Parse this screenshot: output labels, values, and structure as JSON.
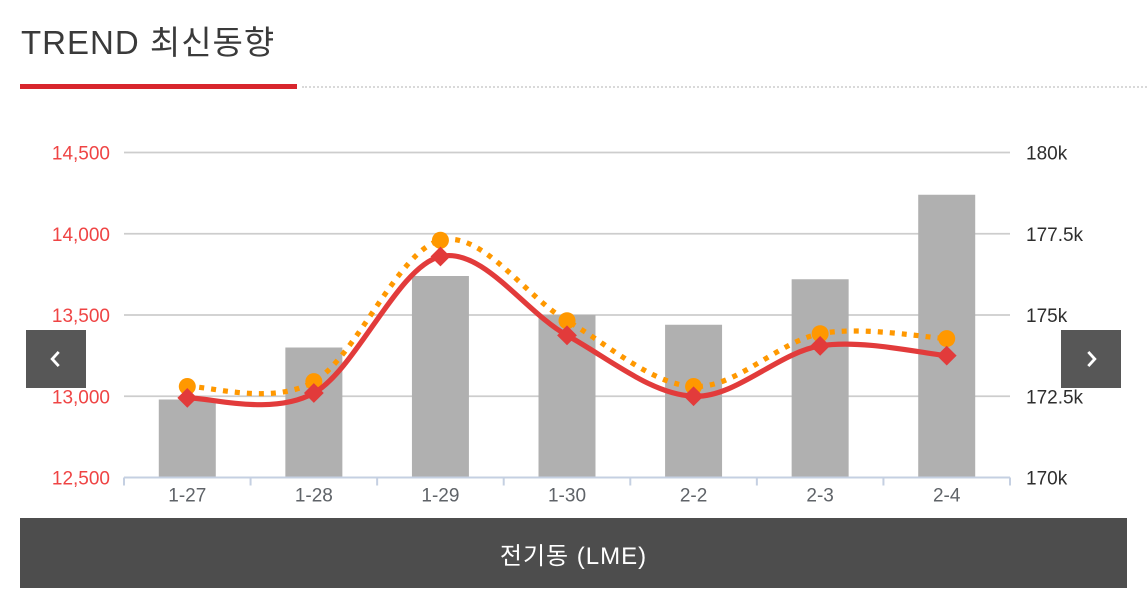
{
  "page": {
    "title": "TREND 최신동향"
  },
  "carousel": {
    "caption": "전기동 (LME)"
  },
  "chart_data": {
    "type": "combo-bar-line",
    "title": "전기동 (LME)",
    "categories": [
      "1-27",
      "1-28",
      "1-29",
      "1-30",
      "2-2",
      "2-3",
      "2-4"
    ],
    "bar_series": {
      "axis": "right",
      "color": "#b0b0b0",
      "values": [
        172400,
        174000,
        176200,
        175000,
        174700,
        176100,
        178700
      ]
    },
    "line_series": [
      {
        "style": "dotted",
        "marker": "circle",
        "color": "#ff9800",
        "axis": "left",
        "values": [
          13060,
          13090,
          13960,
          13465,
          13060,
          13385,
          13355
        ]
      },
      {
        "style": "solid",
        "marker": "diamond",
        "color": "#e23b3b",
        "axis": "left",
        "values": [
          12990,
          13020,
          13860,
          13375,
          13000,
          13310,
          13250
        ]
      }
    ],
    "left_axis": {
      "min": 12500,
      "max": 14500,
      "step": 500,
      "tick_labels": [
        "12,500",
        "13,000",
        "13,500",
        "14,000",
        "14,500"
      ],
      "color": "#ef4444"
    },
    "right_axis": {
      "min": 170000,
      "max": 180000,
      "step": 2500,
      "tick_labels": [
        "170k",
        "172.5k",
        "175k",
        "177.5k",
        "180k"
      ],
      "color": "#2e2e2e"
    },
    "x_axis": {
      "label_color": "#5f6368",
      "line_color": "#c5d0e2"
    },
    "grid": {
      "on": true,
      "color": "#cdcdcd"
    },
    "legend": {
      "visible": false
    }
  }
}
